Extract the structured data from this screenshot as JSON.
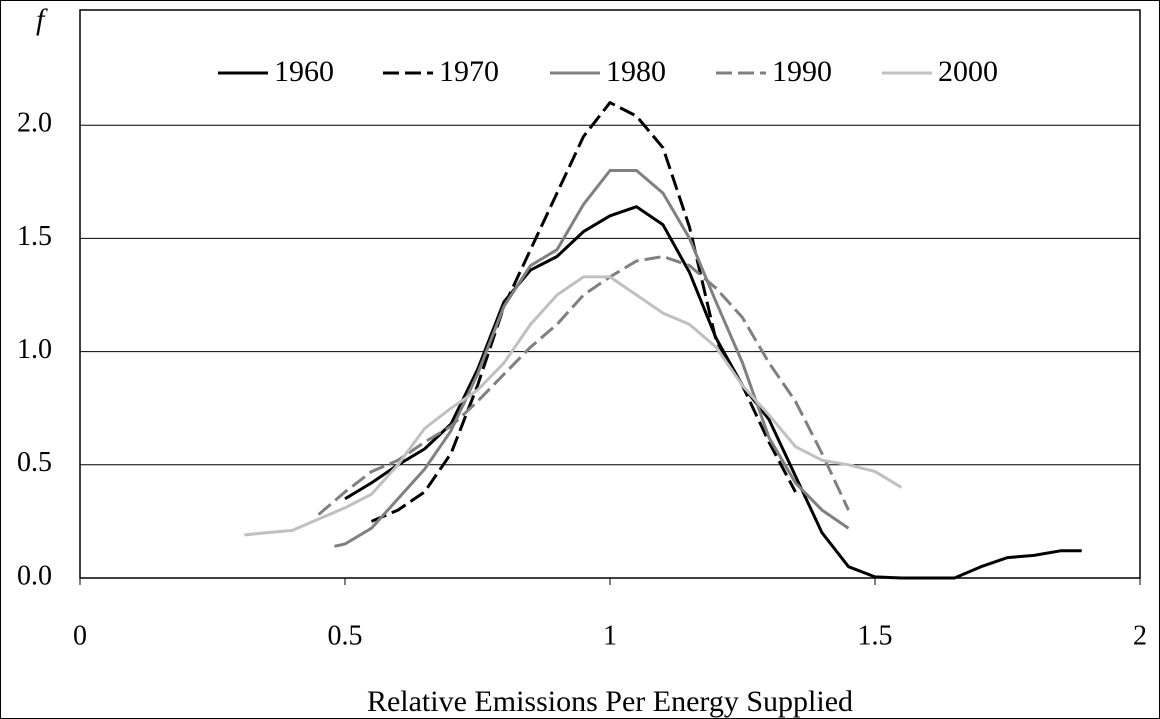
{
  "chart_data": {
    "type": "line",
    "x_label": "Relative Emissions Per Energy Supplied",
    "y_label": "f",
    "xlim": [
      0,
      2
    ],
    "xticks": [
      0,
      0.5,
      1,
      1.5,
      2
    ],
    "ylim": [
      0,
      2.5
    ],
    "yticks": [
      {
        "value": 0,
        "label": "0.0"
      },
      {
        "value": 0.5,
        "label": "0.5"
      },
      {
        "value": 1,
        "label": "1.0"
      },
      {
        "value": 1.5,
        "label": "1.5"
      },
      {
        "value": 2,
        "label": "2.0"
      }
    ],
    "grid": true,
    "legend": "top",
    "series": [
      {
        "name": "1960",
        "color": "#000000",
        "dash": false,
        "x": [
          0.5,
          0.55,
          0.6,
          0.65,
          0.7,
          0.75,
          0.8,
          0.85,
          0.9,
          0.95,
          1.0,
          1.05,
          1.1,
          1.15,
          1.2,
          1.25,
          1.3,
          1.35,
          1.4,
          1.45,
          1.5,
          1.55,
          1.6,
          1.65,
          1.7,
          1.75,
          1.8,
          1.85,
          1.89
        ],
        "values": [
          0.35,
          0.42,
          0.5,
          0.57,
          0.68,
          0.92,
          1.22,
          1.36,
          1.42,
          1.53,
          1.6,
          1.64,
          1.56,
          1.35,
          1.06,
          0.85,
          0.7,
          0.45,
          0.2,
          0.05,
          0.005,
          0,
          0,
          0,
          0.05,
          0.09,
          0.1,
          0.12,
          0.12
        ]
      },
      {
        "name": "1970",
        "color": "#000000",
        "dash": true,
        "x": [
          0.55,
          0.6,
          0.65,
          0.7,
          0.75,
          0.8,
          0.85,
          0.9,
          0.95,
          1.0,
          1.05,
          1.1,
          1.15,
          1.2,
          1.25,
          1.3,
          1.35
        ],
        "values": [
          0.25,
          0.3,
          0.38,
          0.55,
          0.85,
          1.2,
          1.45,
          1.7,
          1.95,
          2.1,
          2.04,
          1.9,
          1.55,
          1.05,
          0.85,
          0.6,
          0.38
        ]
      },
      {
        "name": "1980",
        "color": "#808080",
        "dash": false,
        "x": [
          0.48,
          0.5,
          0.55,
          0.6,
          0.65,
          0.7,
          0.75,
          0.8,
          0.85,
          0.9,
          0.95,
          1.0,
          1.05,
          1.1,
          1.15,
          1.2,
          1.25,
          1.3,
          1.35,
          1.4,
          1.45
        ],
        "values": [
          0.14,
          0.15,
          0.22,
          0.35,
          0.48,
          0.65,
          0.9,
          1.2,
          1.38,
          1.45,
          1.65,
          1.8,
          1.8,
          1.7,
          1.5,
          1.22,
          0.95,
          0.62,
          0.42,
          0.3,
          0.22
        ]
      },
      {
        "name": "1990",
        "color": "#808080",
        "dash": true,
        "x": [
          0.45,
          0.5,
          0.55,
          0.6,
          0.65,
          0.7,
          0.75,
          0.8,
          0.85,
          0.9,
          0.95,
          1.0,
          1.05,
          1.1,
          1.15,
          1.2,
          1.25,
          1.3,
          1.35,
          1.4,
          1.45
        ],
        "values": [
          0.28,
          0.38,
          0.47,
          0.52,
          0.6,
          0.67,
          0.78,
          0.9,
          1.02,
          1.12,
          1.25,
          1.33,
          1.4,
          1.42,
          1.38,
          1.28,
          1.15,
          0.95,
          0.78,
          0.55,
          0.3
        ]
      },
      {
        "name": "2000",
        "color": "#c0c0c0",
        "dash": false,
        "x": [
          0.31,
          0.35,
          0.4,
          0.45,
          0.5,
          0.55,
          0.6,
          0.65,
          0.7,
          0.75,
          0.8,
          0.85,
          0.9,
          0.95,
          1.0,
          1.05,
          1.1,
          1.15,
          1.2,
          1.25,
          1.3,
          1.35,
          1.4,
          1.45,
          1.5,
          1.55
        ],
        "values": [
          0.19,
          0.2,
          0.21,
          0.26,
          0.31,
          0.37,
          0.5,
          0.66,
          0.75,
          0.83,
          0.95,
          1.12,
          1.25,
          1.33,
          1.33,
          1.25,
          1.17,
          1.12,
          1.02,
          0.85,
          0.72,
          0.58,
          0.52,
          0.5,
          0.47,
          0.4
        ]
      }
    ]
  }
}
